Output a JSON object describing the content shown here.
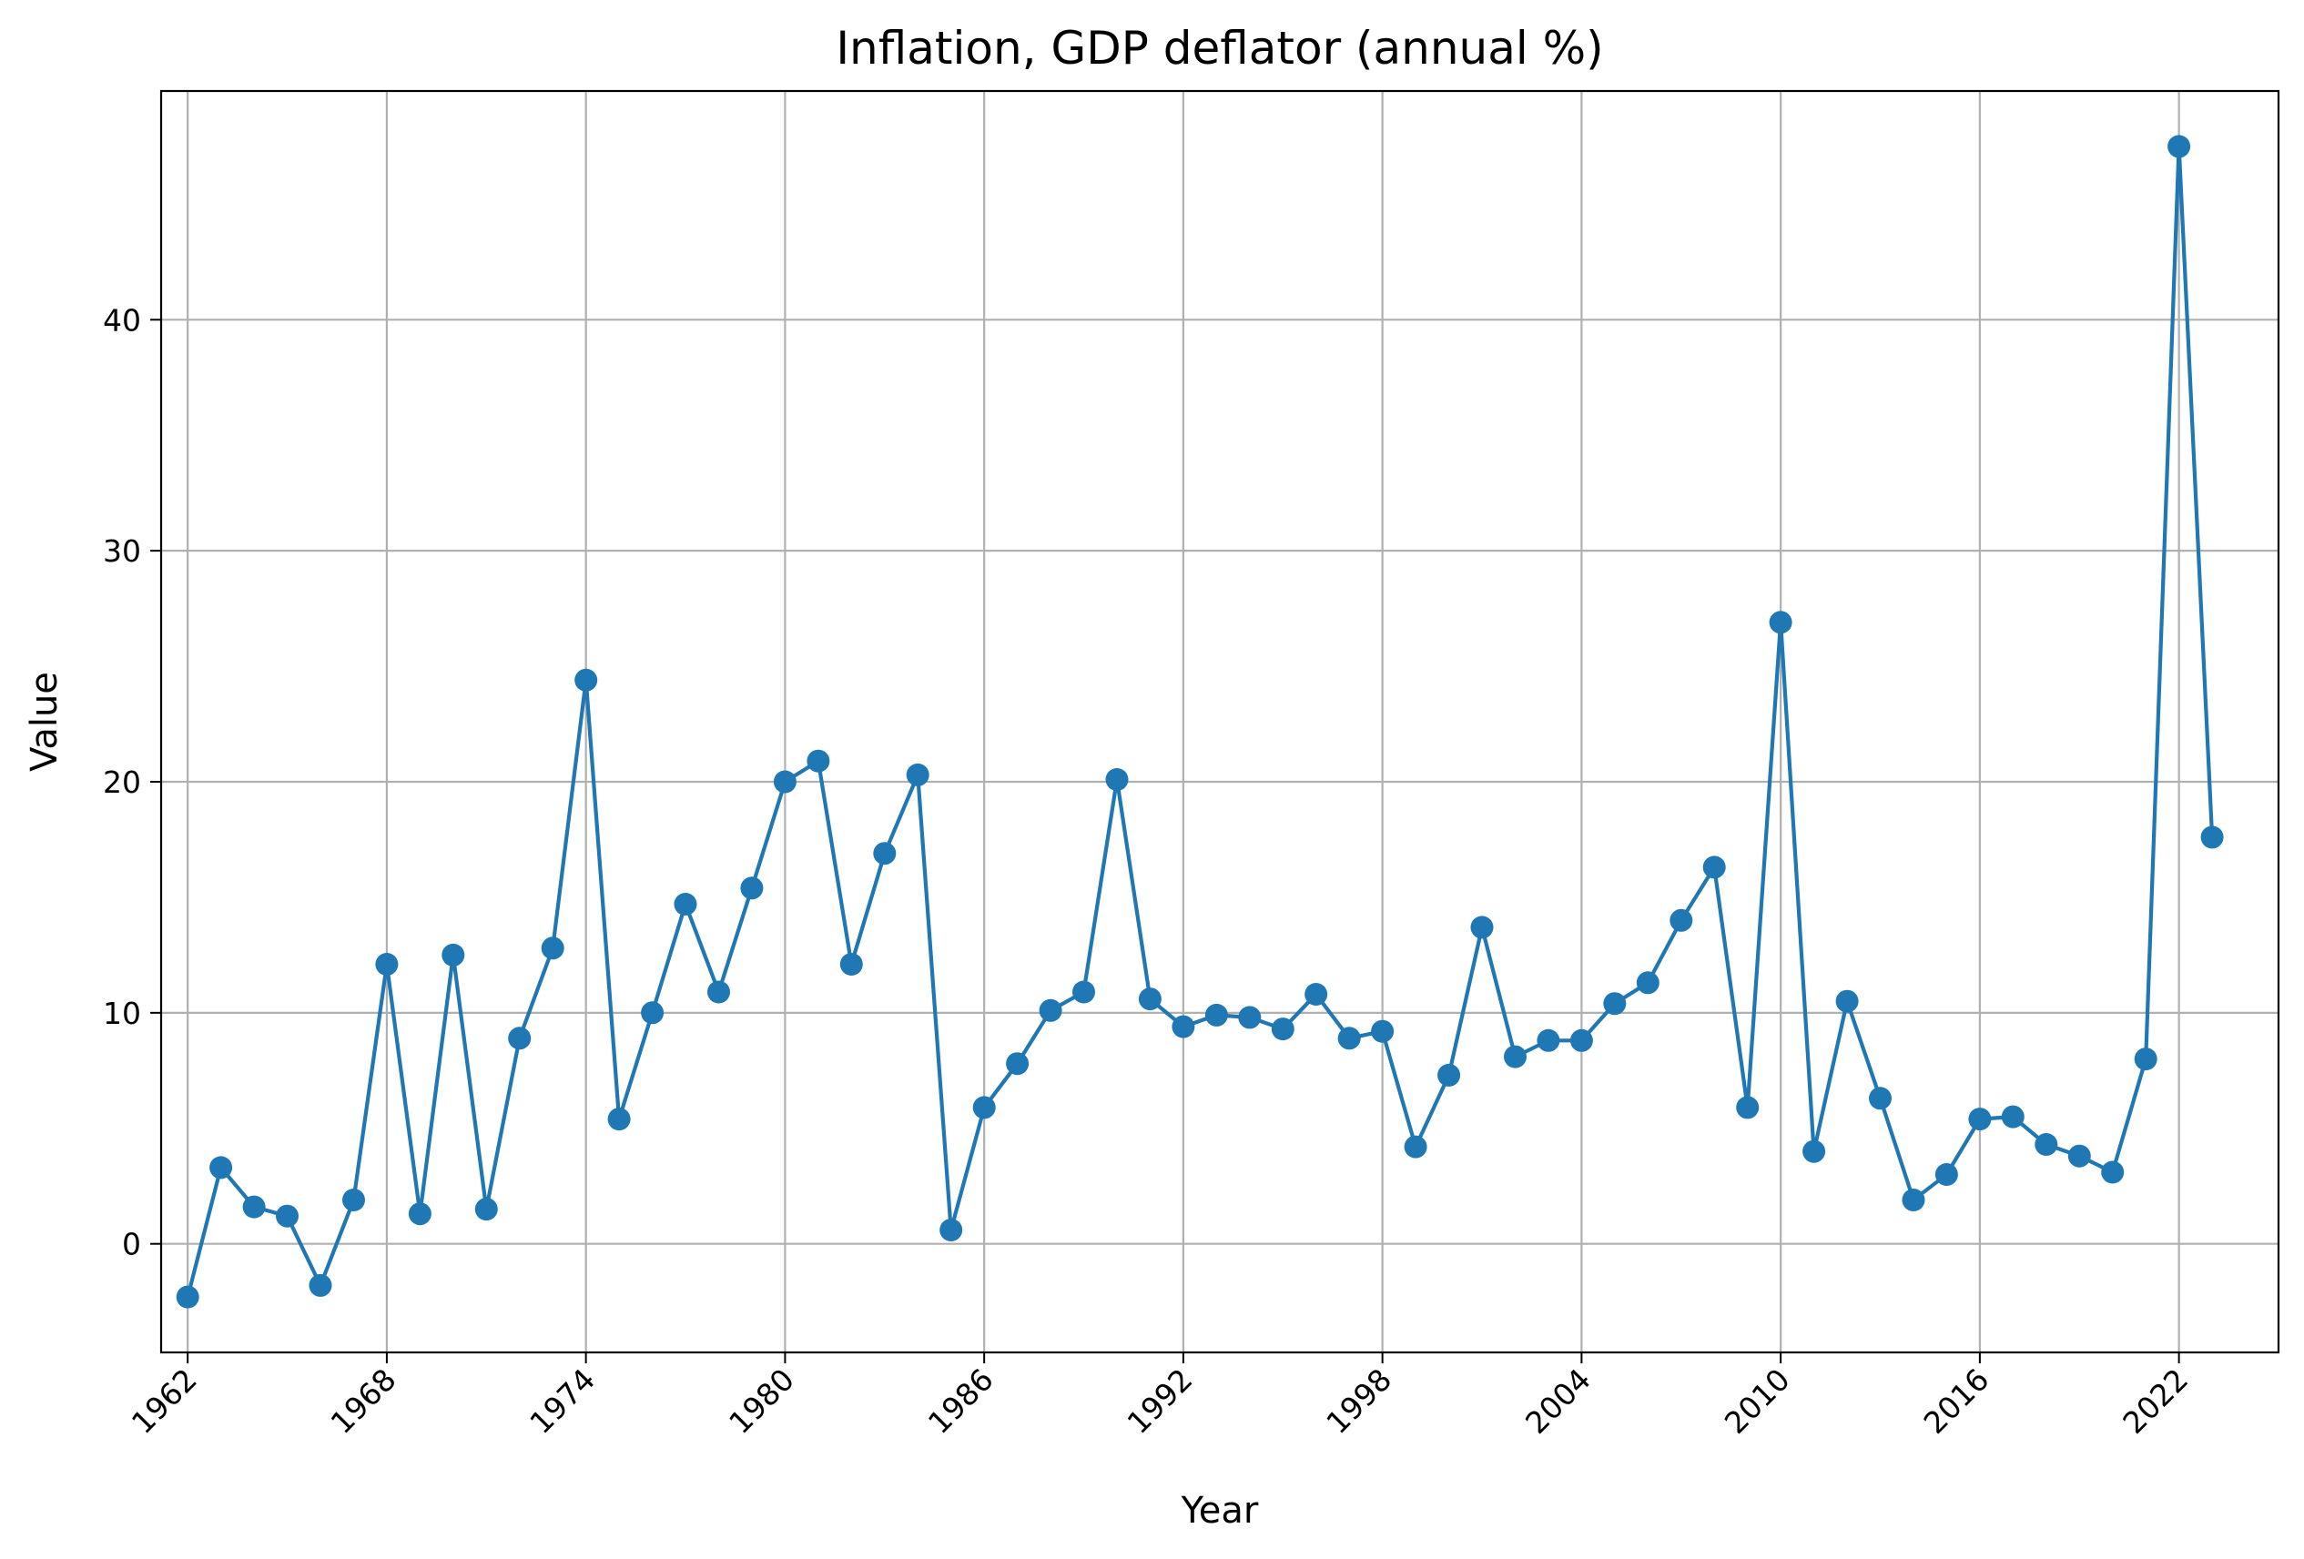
{
  "chart_data": {
    "type": "line",
    "title": "Inflation, GDP deflator (annual %)",
    "xlabel": "Year",
    "ylabel": "Value",
    "xlim": [
      1961.2,
      2025.0
    ],
    "ylim": [
      -4.7,
      49.9
    ],
    "xticks": [
      1962,
      1968,
      1974,
      1980,
      1986,
      1992,
      1998,
      2004,
      2010,
      2016,
      2022
    ],
    "yticks": [
      0,
      10,
      20,
      30,
      40
    ],
    "grid": true,
    "legend": "none",
    "series": [
      {
        "color": "#1f77b4",
        "marker": "circle",
        "x": [
          1962,
          1963,
          1964,
          1965,
          1966,
          1967,
          1968,
          1969,
          1970,
          1971,
          1972,
          1973,
          1974,
          1975,
          1976,
          1977,
          1978,
          1979,
          1980,
          1981,
          1982,
          1983,
          1984,
          1985,
          1986,
          1987,
          1988,
          1989,
          1990,
          1991,
          1992,
          1993,
          1994,
          1995,
          1996,
          1997,
          1998,
          1999,
          2000,
          2001,
          2002,
          2003,
          2004,
          2005,
          2006,
          2007,
          2008,
          2009,
          2010,
          2011,
          2012,
          2013,
          2014,
          2015,
          2016,
          2017,
          2018,
          2019,
          2020,
          2021,
          2022,
          2023
        ],
        "y": [
          -2.3,
          3.3,
          1.6,
          1.2,
          -1.8,
          1.9,
          12.1,
          1.3,
          12.5,
          1.5,
          8.9,
          12.8,
          24.4,
          5.4,
          10.0,
          14.7,
          10.9,
          15.4,
          20.0,
          20.9,
          12.1,
          16.9,
          20.3,
          0.6,
          5.9,
          7.8,
          10.1,
          10.9,
          20.1,
          10.6,
          9.4,
          9.9,
          9.8,
          9.3,
          10.8,
          8.9,
          9.2,
          4.2,
          7.3,
          13.7,
          8.1,
          8.8,
          8.8,
          10.4,
          11.3,
          14.0,
          16.3,
          5.9,
          26.9,
          4.0,
          10.5,
          6.3,
          1.9,
          3.0,
          5.4,
          5.5,
          4.3,
          3.8,
          3.1,
          8.0,
          47.5,
          17.6
        ]
      }
    ]
  }
}
